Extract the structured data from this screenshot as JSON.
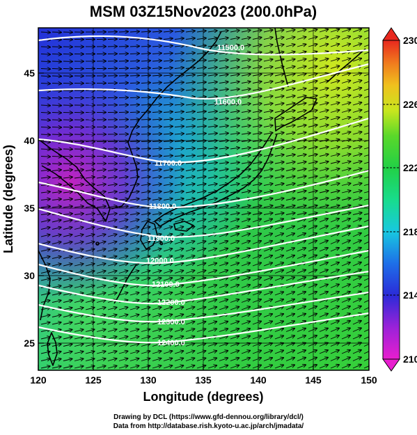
{
  "title": "MSM 03Z15Nov2023 (200.0hPa)",
  "xlabel": "Longitude (degrees)",
  "ylabel": "Latitude  (degrees)",
  "x_ticks": [
    "120",
    "125",
    "130",
    "135",
    "140",
    "145",
    "150"
  ],
  "y_ticks": [
    "25",
    "30",
    "35",
    "40",
    "45"
  ],
  "colorbar": {
    "min": 210,
    "max": 230,
    "tick_labels": [
      "230",
      "226",
      "222",
      "218",
      "214",
      "210"
    ]
  },
  "contour_labels": [
    "11500.0",
    "11600.0",
    "11700.0",
    "11800.0",
    "11900.0",
    "12000.0",
    "12100.0",
    "12200.0",
    "12300.0",
    "12400.0"
  ],
  "credit_line1": "Drawing by DCL (https://www.gfd-dennou.org/library/dcl/)",
  "credit_line2": "Data from http://database.rish.kyoto-u.ac.jp/arch/jmadata/",
  "colors": {
    "blue_region": "#1e2fd8",
    "magenta_region": "#c81fb8",
    "green_region": "#2ec82e",
    "yellow_region": "#c8e61e",
    "contour": "#ffffff",
    "vector": "#000000"
  }
}
